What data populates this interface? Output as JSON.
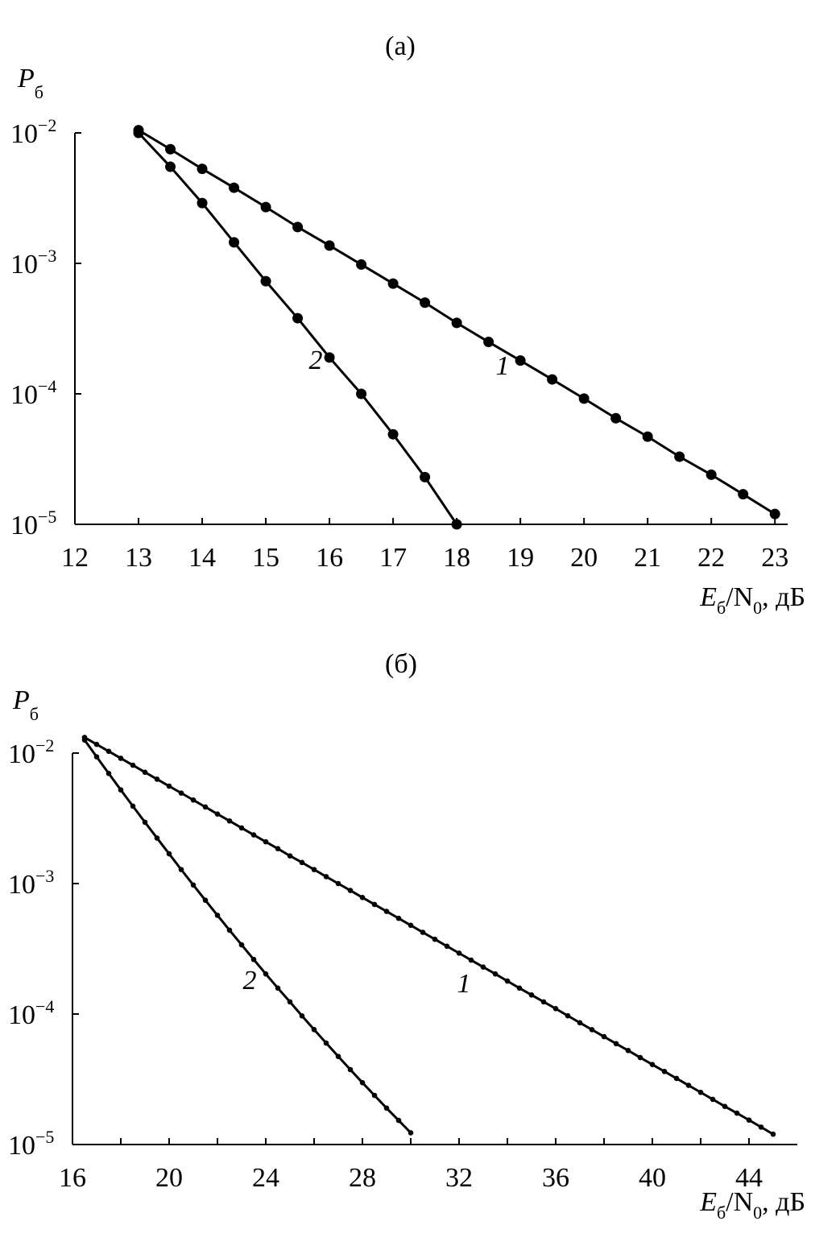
{
  "chart_data": [
    {
      "type": "line",
      "title": "(а)",
      "ylabel": [
        "P",
        "б"
      ],
      "xlabel": [
        "E",
        "б",
        "/N",
        "0",
        ", дБ"
      ],
      "log_y": true,
      "ylim": [
        1e-05,
        0.01
      ],
      "xlim": [
        12,
        23.2
      ],
      "yticks": [
        {
          "value": 0.01,
          "label": [
            "10",
            "−2"
          ]
        },
        {
          "value": 0.001,
          "label": [
            "10",
            "−3"
          ]
        },
        {
          "value": 0.0001,
          "label": [
            "10",
            "−4"
          ]
        },
        {
          "value": 1e-05,
          "label": [
            "10",
            "−5"
          ]
        }
      ],
      "xticks": [
        12,
        13,
        14,
        15,
        16,
        17,
        18,
        19,
        20,
        21,
        22,
        23
      ],
      "series": [
        {
          "name": "1",
          "color": "#000000",
          "x": [
            13,
            13.5,
            14,
            14.5,
            15,
            15.5,
            16,
            16.5,
            17,
            17.5,
            18,
            18.5,
            19,
            19.5,
            20,
            20.5,
            21,
            21.5,
            22,
            22.5,
            23
          ],
          "values": [
            0.0105,
            0.0075,
            0.0053,
            0.0038,
            0.0027,
            0.0019,
            0.00137,
            0.00098,
            0.0007,
            0.0005,
            0.00035,
            0.00025,
            0.00018,
            0.000129,
            9.2e-05,
            6.5e-05,
            4.7e-05,
            3.3e-05,
            2.4e-05,
            1.7e-05,
            1.2e-05
          ]
        },
        {
          "name": "2",
          "color": "#000000",
          "x": [
            13,
            13.5,
            14,
            14.5,
            15,
            15.5,
            16,
            16.5,
            17,
            17.5,
            18
          ],
          "values": [
            0.01,
            0.0055,
            0.0029,
            0.00145,
            0.00073,
            0.00038,
            0.00019,
            0.0001,
            4.9e-05,
            2.3e-05,
            1e-05
          ]
        }
      ]
    },
    {
      "type": "line",
      "title": "(б)",
      "ylabel": [
        "P",
        "б"
      ],
      "xlabel": [
        "E",
        "б",
        "/N",
        "0",
        ", дБ"
      ],
      "log_y": true,
      "ylim": [
        1e-05,
        0.01
      ],
      "xlim": [
        16,
        46
      ],
      "yticks": [
        {
          "value": 0.01,
          "label": [
            "10",
            "−2"
          ]
        },
        {
          "value": 0.001,
          "label": [
            "10",
            "−3"
          ]
        },
        {
          "value": 0.0001,
          "label": [
            "10",
            "−4"
          ]
        },
        {
          "value": 1e-05,
          "label": [
            "10",
            "−5"
          ]
        }
      ],
      "xticks": [
        16,
        20,
        24,
        28,
        32,
        36,
        40,
        44
      ],
      "xminorticks": [
        18,
        22,
        26,
        30,
        34,
        38,
        42
      ],
      "series": [
        {
          "name": "1",
          "color": "#000000",
          "x": [
            16.5,
            17,
            17.5,
            18,
            18.5,
            19,
            19.5,
            20,
            20.5,
            21,
            21.5,
            22,
            22.5,
            23,
            23.5,
            24,
            24.5,
            25,
            25.5,
            26,
            26.5,
            27,
            27.5,
            28,
            28.5,
            29,
            29.5,
            30,
            30.5,
            31,
            31.5,
            32,
            32.5,
            33,
            33.5,
            34,
            34.5,
            35,
            35.5,
            36,
            36.5,
            37,
            37.5,
            38,
            38.5,
            39,
            39.5,
            40,
            40.5,
            41,
            41.5,
            42,
            42.5,
            43,
            43.5,
            44,
            44.5,
            45
          ],
          "values": [
            0.01318,
            0.01166,
            0.01031,
            0.00912,
            0.00807,
            0.00713,
            0.00631,
            0.00558,
            0.00494,
            0.00437,
            0.00386,
            0.00341,
            0.00302,
            0.00267,
            0.00236,
            0.00209,
            0.00185,
            0.00163,
            0.00145,
            0.00128,
            0.00113,
            0.001,
            0.000885,
            0.000782,
            0.000692,
            0.000612,
            0.000541,
            0.000479,
            0.000423,
            0.000374,
            0.000331,
            0.000293,
            0.000259,
            0.000229,
            0.000203,
            0.000179,
            0.000158,
            0.00014,
            0.000124,
            0.00011,
            9.7e-05,
            8.58e-05,
            7.59e-05,
            6.71e-05,
            5.93e-05,
            5.25e-05,
            4.64e-05,
            4.1e-05,
            3.63e-05,
            3.21e-05,
            2.84e-05,
            2.51e-05,
            2.22e-05,
            1.96e-05,
            1.74e-05,
            1.54e-05,
            1.36e-05,
            1.2e-05
          ]
        },
        {
          "name": "2",
          "color": "#000000",
          "x": [
            16.5,
            17,
            17.5,
            18,
            18.5,
            19,
            19.5,
            20,
            20.5,
            21,
            21.5,
            22,
            22.5,
            23,
            23.5,
            24,
            24.5,
            25,
            25.5,
            26,
            26.5,
            27,
            27.5,
            28,
            28.5,
            29,
            29.5,
            30
          ],
          "values": [
            0.01259,
            0.00936,
            0.00698,
            0.00522,
            0.00392,
            0.00295,
            0.00223,
            0.00169,
            0.00128,
            0.000975,
            0.000745,
            0.000571,
            0.000439,
            0.000339,
            0.000262,
            0.000203,
            0.000158,
            0.000124,
            9.68e-05,
            7.6e-05,
            5.99e-05,
            4.73e-05,
            3.75e-05,
            2.98e-05,
            2.38e-05,
            1.9e-05,
            1.53e-05,
            1.23e-05
          ]
        }
      ]
    }
  ]
}
